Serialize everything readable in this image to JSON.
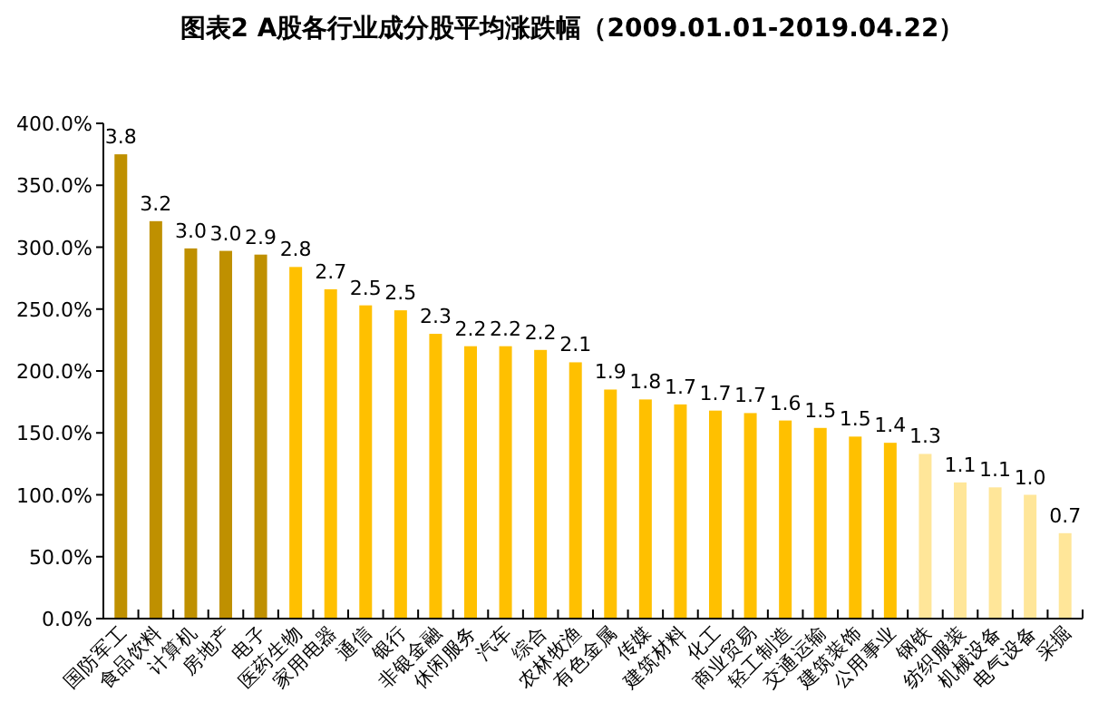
{
  "chart_data": {
    "type": "bar",
    "title": "图表2 A股各行业成分股平均涨跌幅（2009.01.01-2019.04.22）",
    "categories": [
      "国防军工",
      "食品饮料",
      "计算机",
      "房地产",
      "电子",
      "医药生物",
      "家用电器",
      "通信",
      "银行",
      "非银金融",
      "休闲服务",
      "汽车",
      "综合",
      "农林牧渔",
      "有色金属",
      "传媒",
      "建筑材料",
      "化工",
      "商业贸易",
      "轻工制造",
      "交通运输",
      "建筑装饰",
      "公用事业",
      "钢铁",
      "纺织服装",
      "机械设备",
      "电气设备",
      "采掘"
    ],
    "values": [
      3.75,
      3.21,
      2.99,
      2.97,
      2.94,
      2.84,
      2.66,
      2.53,
      2.49,
      2.3,
      2.2,
      2.2,
      2.17,
      2.07,
      1.85,
      1.77,
      1.73,
      1.68,
      1.66,
      1.6,
      1.54,
      1.47,
      1.42,
      1.33,
      1.1,
      1.06,
      1.0,
      0.69
    ],
    "colors": [
      "#bf9000",
      "#bf9000",
      "#bf9000",
      "#bf9000",
      "#bf9000",
      "#ffc000",
      "#ffc000",
      "#ffc000",
      "#ffc000",
      "#ffc000",
      "#ffc000",
      "#ffc000",
      "#ffc000",
      "#ffc000",
      "#ffc000",
      "#ffc000",
      "#ffc000",
      "#ffc000",
      "#ffc000",
      "#ffc000",
      "#ffc000",
      "#ffc000",
      "#ffc000",
      "#ffe699",
      "#ffe699",
      "#ffe699",
      "#ffe699",
      "#ffe699"
    ],
    "value_labels": [
      "3.8",
      "3.2",
      "3.0",
      "3.0",
      "2.9",
      "2.8",
      "2.7",
      "2.5",
      "2.5",
      "2.3",
      "2.2",
      "2.2",
      "2.2",
      "2.1",
      "1.9",
      "1.8",
      "1.7",
      "1.7",
      "1.7",
      "1.6",
      "1.5",
      "1.5",
      "1.4",
      "1.3",
      "1.1",
      "1.1",
      "1.0",
      "0.7"
    ],
    "ylim": [
      0,
      4
    ],
    "yticks": [
      {
        "value": 0,
        "label": "0.0%"
      },
      {
        "value": 0.5,
        "label": "50.0%"
      },
      {
        "value": 1,
        "label": "100.0%"
      },
      {
        "value": 1.5,
        "label": "150.0%"
      },
      {
        "value": 2,
        "label": "200.0%"
      },
      {
        "value": 2.5,
        "label": "250.0%"
      },
      {
        "value": 3,
        "label": "300.0%"
      },
      {
        "value": 3.5,
        "label": "350.0%"
      },
      {
        "value": 4,
        "label": "400.0%"
      }
    ]
  }
}
